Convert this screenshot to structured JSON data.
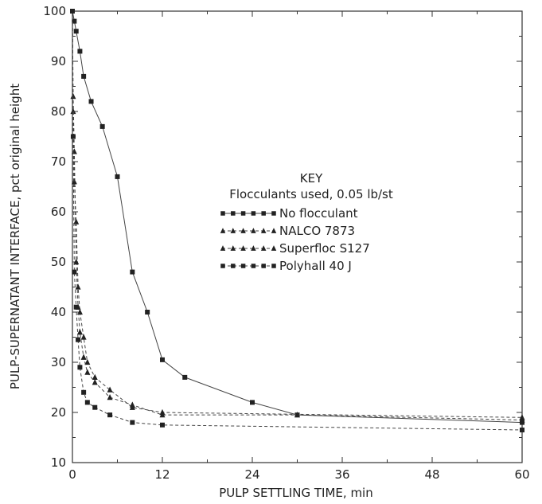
{
  "chart_data": {
    "type": "line",
    "title": "",
    "xlabel": "PULP SETTLING TIME, min",
    "ylabel": "PULP-SUPERNATANT INTERFACE, pct original height",
    "xlim": [
      0,
      60
    ],
    "ylim": [
      10,
      100
    ],
    "x_ticks": [
      "0",
      "12",
      "24",
      "36",
      "48",
      "60"
    ],
    "y_ticks": [
      "10",
      "20",
      "30",
      "40",
      "50",
      "60",
      "70",
      "80",
      "90",
      "100"
    ],
    "grid": false,
    "legend": {
      "title": "KEY",
      "subtitle": "Flocculants used, 0.05 lb/st",
      "placement": "center"
    },
    "series": [
      {
        "name": "No flocculant",
        "marker": "square",
        "line": "solid",
        "x": [
          0,
          0.25,
          0.5,
          1,
          1.5,
          2.5,
          4,
          6,
          8,
          10,
          12,
          15,
          24,
          30,
          60
        ],
        "y": [
          100,
          98,
          96,
          92,
          87,
          82,
          77,
          67,
          48,
          40,
          30.5,
          27,
          22,
          19.5,
          18
        ]
      },
      {
        "name": "NALCO 7873",
        "marker": "triangle",
        "line": "dashed",
        "x": [
          0,
          0.1,
          0.25,
          0.5,
          0.75,
          1,
          1.5,
          2,
          3,
          5,
          8,
          12,
          60
        ],
        "y": [
          100,
          80,
          66,
          58,
          45,
          40,
          35,
          30,
          27,
          24.5,
          21,
          20,
          19
        ]
      },
      {
        "name": "Superfloc S127",
        "marker": "triangle",
        "line": "dashed",
        "x": [
          0,
          0.1,
          0.25,
          0.5,
          0.75,
          1,
          1.5,
          2,
          3,
          5,
          8,
          12,
          30,
          60
        ],
        "y": [
          100,
          83,
          72,
          50,
          41,
          36,
          31,
          28,
          26,
          23,
          21.5,
          19.5,
          19.5,
          18.5
        ]
      },
      {
        "name": "Polyhall 40 J",
        "marker": "square",
        "line": "dashed",
        "x": [
          0,
          0.1,
          0.25,
          0.5,
          0.75,
          1,
          1.5,
          2,
          3,
          5,
          8,
          12,
          60
        ],
        "y": [
          100,
          75,
          48,
          41,
          34.5,
          29,
          24,
          22,
          21,
          19.5,
          18,
          17.5,
          16.5
        ]
      }
    ]
  }
}
